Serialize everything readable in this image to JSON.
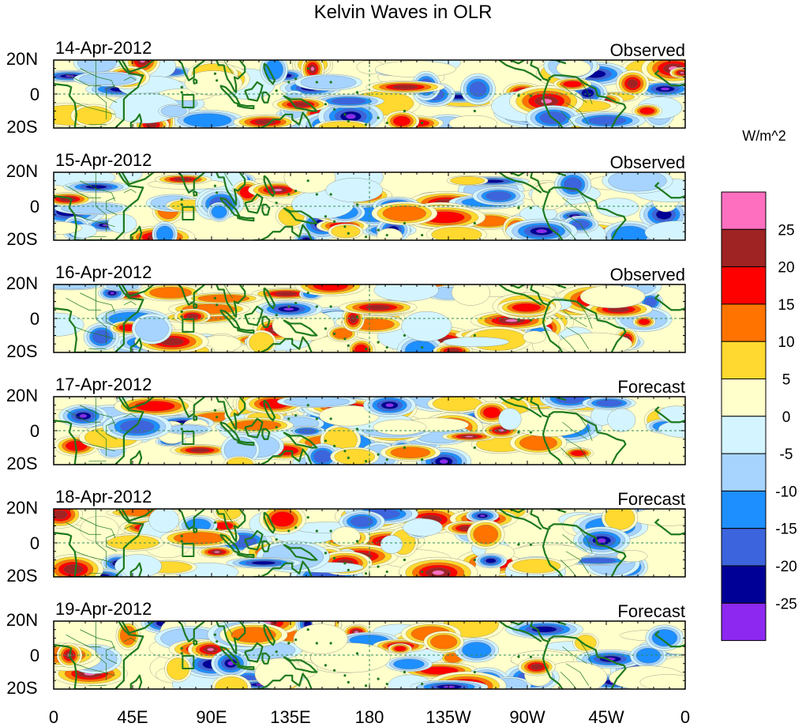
{
  "title": "Kelvin Waves in OLR",
  "panels": [
    {
      "date": "14-Apr-2012",
      "status": "Observed"
    },
    {
      "date": "15-Apr-2012",
      "status": "Observed"
    },
    {
      "date": "16-Apr-2012",
      "status": "Observed"
    },
    {
      "date": "17-Apr-2012",
      "status": "Forecast"
    },
    {
      "date": "18-Apr-2012",
      "status": "Forecast"
    },
    {
      "date": "19-Apr-2012",
      "status": "Forecast"
    }
  ],
  "lat_ticks": [
    "20N",
    "0",
    "20S"
  ],
  "lon_ticks": [
    "0",
    "45E",
    "90E",
    "135E",
    "180",
    "135W",
    "90W",
    "45W",
    "0"
  ],
  "colorbar": {
    "unit": "W/m^2",
    "colors": [
      "#ff6fc0",
      "#a02323",
      "#ff0000",
      "#ff7300",
      "#ffd92f",
      "#ffffcc",
      "#d4f5ff",
      "#a6d4ff",
      "#1e8fff",
      "#3c64dc",
      "#000096",
      "#8c28f0"
    ],
    "labels": [
      "25",
      "20",
      "15",
      "10",
      "5",
      "0",
      "-5",
      "-10",
      "-15",
      "-20",
      "-25"
    ]
  },
  "colors": {
    "coast": "#1e7a1e",
    "equator": "#2e8b57"
  }
}
